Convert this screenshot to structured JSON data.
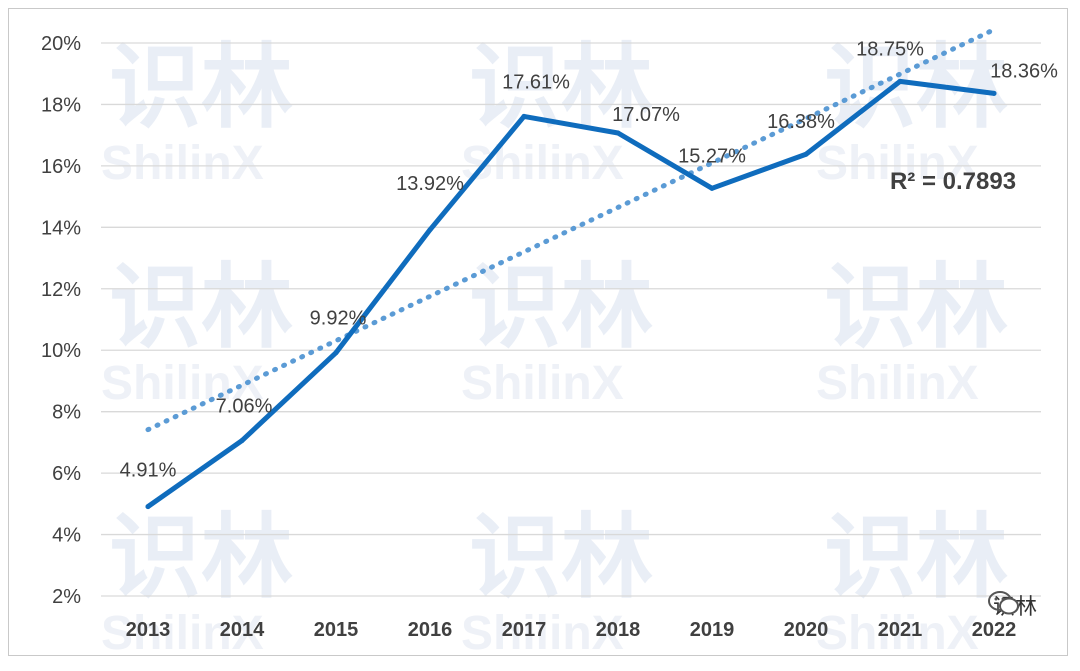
{
  "chart_data": {
    "type": "line",
    "categories": [
      "2013",
      "2014",
      "2015",
      "2016",
      "2017",
      "2018",
      "2019",
      "2020",
      "2021",
      "2022"
    ],
    "series": [
      {
        "values": [
          4.91,
          7.06,
          9.92,
          13.92,
          17.61,
          17.07,
          15.27,
          16.38,
          18.75,
          18.36
        ],
        "labels": [
          "4.91%",
          "7.06%",
          "9.92%",
          "13.92%",
          "17.61%",
          "17.07%",
          "15.27%",
          "16.38%",
          "18.75%",
          "18.36%"
        ],
        "color": "#0f6cbd"
      }
    ],
    "trendline": {
      "type": "linear",
      "style": "dotted",
      "color": "#5b9bd5",
      "r_squared_label": "R² = 0.7893"
    },
    "ylim": [
      2,
      20
    ],
    "yticks": [
      2,
      4,
      6,
      8,
      10,
      12,
      14,
      16,
      18,
      20
    ],
    "ytick_labels": [
      "2%",
      "4%",
      "6%",
      "8%",
      "10%",
      "12%",
      "14%",
      "16%",
      "18%",
      "20%"
    ],
    "grid": true,
    "legend": "none"
  },
  "watermark": {
    "text_cn": "识林",
    "text_en": "ShilinX",
    "corner_text": "识林",
    "corner_icon": "wechat-icon"
  }
}
